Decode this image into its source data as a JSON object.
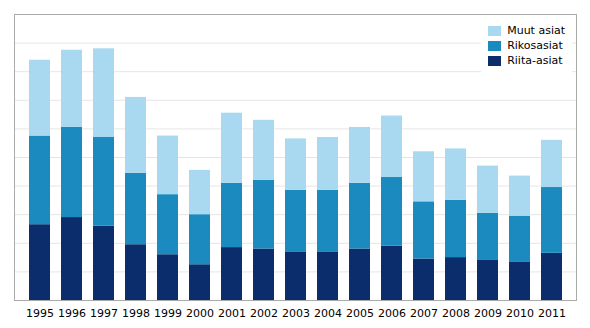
{
  "chart_data": {
    "type": "bar",
    "categories": [
      "1995",
      "1996",
      "1997",
      "1998",
      "1999",
      "2000",
      "2001",
      "2002",
      "2003",
      "2004",
      "2005",
      "2006",
      "2007",
      "2008",
      "2009",
      "2010",
      "2011"
    ],
    "series": [
      {
        "name": "Riita-asiat",
        "color": "#0b2d6b",
        "values": [
          530,
          580,
          520,
          390,
          320,
          250,
          370,
          360,
          340,
          340,
          360,
          380,
          290,
          300,
          280,
          270,
          330
        ]
      },
      {
        "name": "Rikosasiat",
        "color": "#1a8abf",
        "values": [
          620,
          630,
          620,
          500,
          420,
          350,
          450,
          480,
          430,
          430,
          460,
          480,
          400,
          400,
          330,
          320,
          460
        ]
      },
      {
        "name": "Muut asiat",
        "color": "#a8d9f0",
        "values": [
          530,
          540,
          620,
          530,
          410,
          310,
          490,
          420,
          360,
          370,
          390,
          430,
          350,
          360,
          330,
          280,
          330
        ]
      }
    ],
    "stacked": true,
    "ylim": [
      0,
      2000
    ],
    "yticks": [
      200,
      400,
      600,
      800,
      1000,
      1200,
      1400,
      1600,
      1800
    ],
    "grid": true,
    "legend": "upper right",
    "tick_labels": "x"
  }
}
